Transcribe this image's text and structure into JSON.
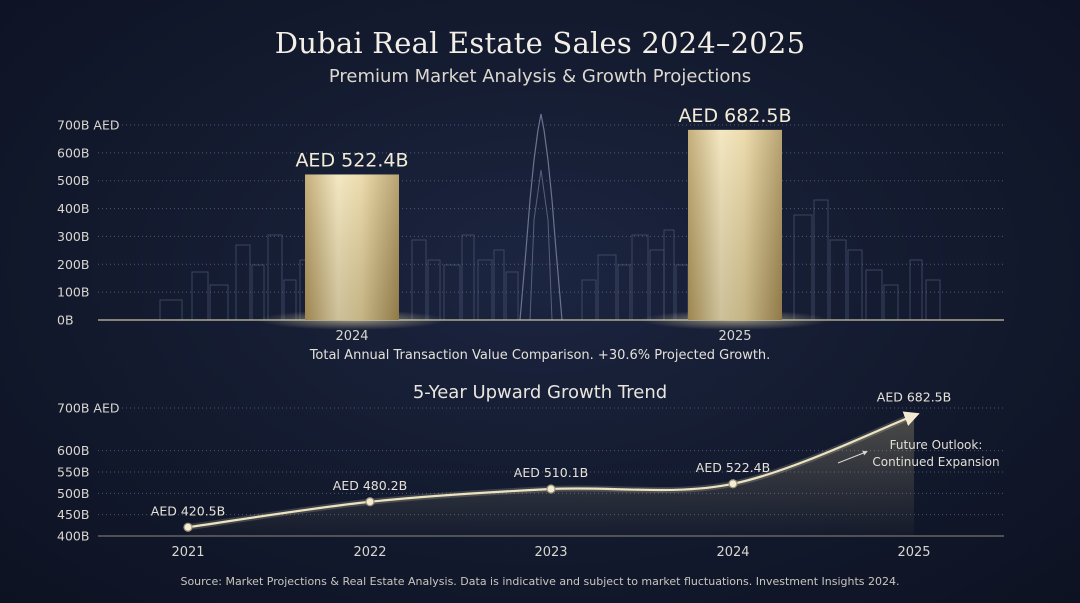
{
  "colors": {
    "gold": "#e6d6a4",
    "gold_dark": "#b79e62",
    "line": "#ece3c0",
    "axis_text": "#d9d6cf",
    "skyline": "#4a5370"
  },
  "chart_data": [
    {
      "type": "bar",
      "title": "Dubai Real Estate Sales 2024–2025",
      "subtitle": "Premium Market Analysis & Growth Projections",
      "categories": [
        "2024",
        "2025"
      ],
      "values": [
        522.4,
        682.5
      ],
      "value_labels": [
        "AED 522.4B",
        "AED 682.5B"
      ],
      "ylim": [
        0,
        700
      ],
      "y_ticks": [
        {
          "value": 0,
          "label": "0B"
        },
        {
          "value": 100,
          "label": "100B"
        },
        {
          "value": 200,
          "label": "200B"
        },
        {
          "value": 300,
          "label": "300B"
        },
        {
          "value": 400,
          "label": "400B"
        },
        {
          "value": 500,
          "label": "500B"
        },
        {
          "value": 600,
          "label": "600B"
        },
        {
          "value": 700,
          "label": "700B AED"
        }
      ],
      "caption": "Total Annual Transaction Value Comparison. +30.6% Projected Growth.",
      "grid": true
    },
    {
      "type": "line",
      "title": "5-Year Upward Growth Trend",
      "x": [
        "2021",
        "2022",
        "2023",
        "2024",
        "2025"
      ],
      "values": [
        420.5,
        480.2,
        510.1,
        522.4,
        682.5
      ],
      "value_labels": [
        "AED 420.5B",
        "AED 480.2B",
        "AED 510.1B",
        "AED 522.4B",
        "AED 682.5B"
      ],
      "ylim": [
        400,
        700
      ],
      "y_ticks": [
        {
          "value": 400,
          "label": "400B"
        },
        {
          "value": 450,
          "label": "450B"
        },
        {
          "value": 500,
          "label": "500B"
        },
        {
          "value": 550,
          "label": "550B"
        },
        {
          "value": 600,
          "label": "600B"
        },
        {
          "value": 700,
          "label": "700B AED"
        }
      ],
      "annotation": [
        "Future Outlook:",
        "Continued Expansion"
      ],
      "grid": true
    }
  ],
  "source": "Source: Market Projections & Real Estate Analysis. Data is indicative and subject to market fluctuations. Investment Insights 2024."
}
